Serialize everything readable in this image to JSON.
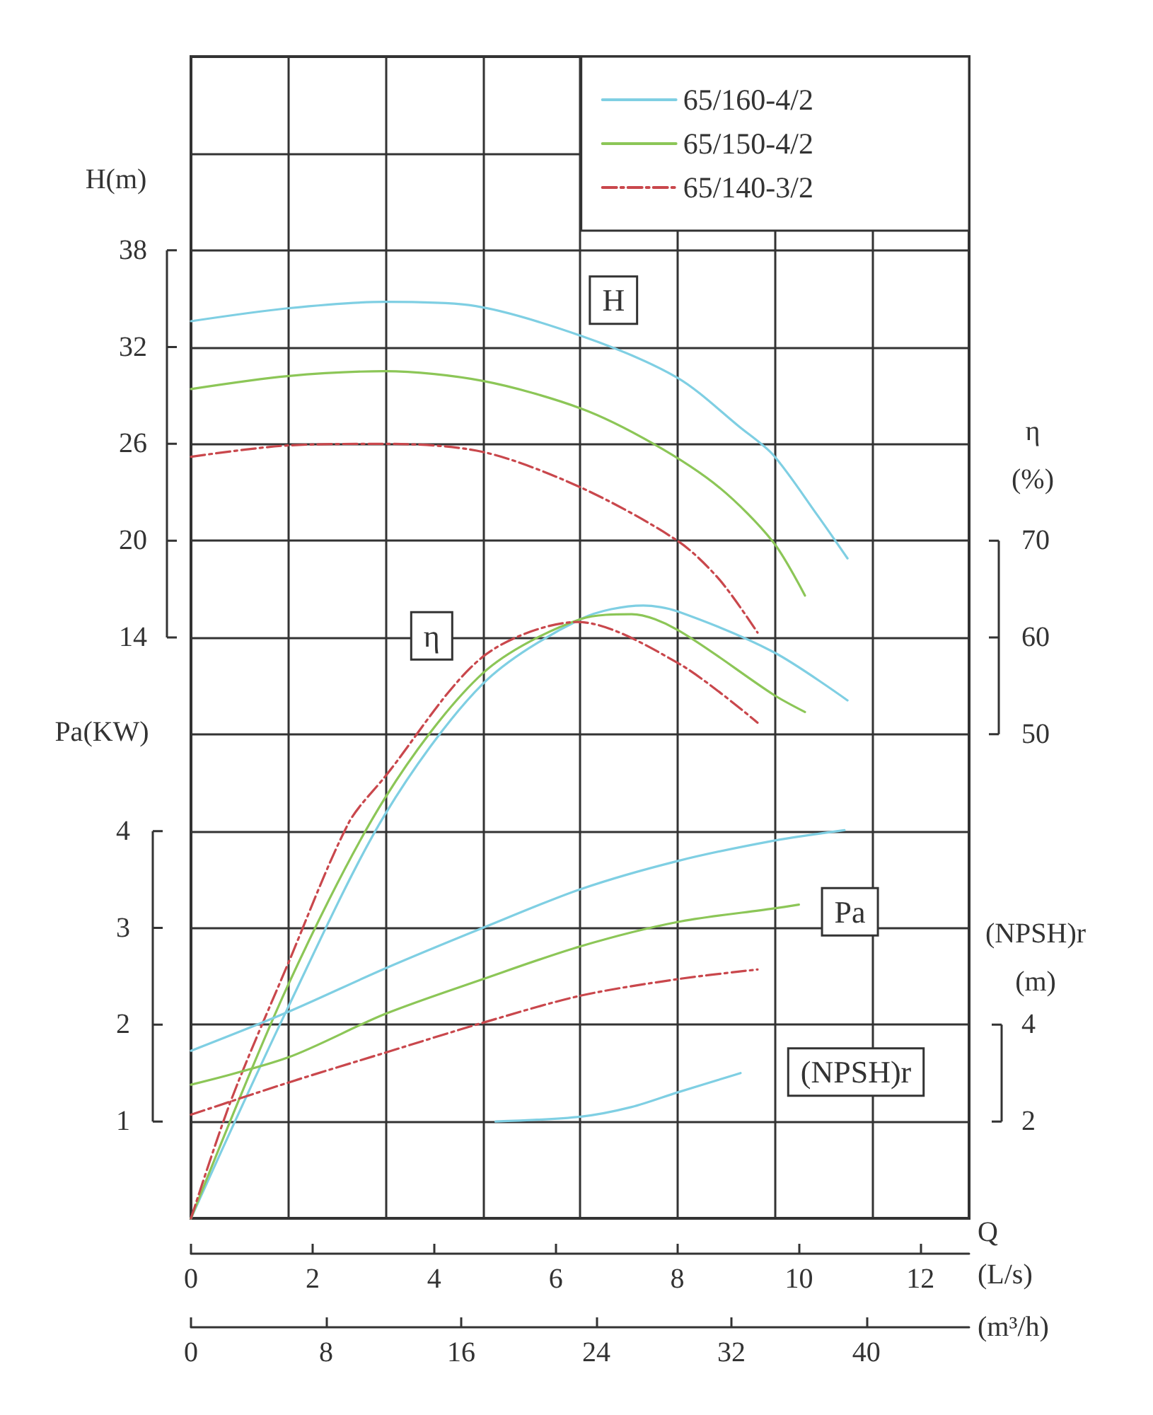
{
  "chart_data": [
    {
      "type": "line",
      "xlabel": "Q (L/s)",
      "x2label": "(m³/h)",
      "ylabel": "H(m)",
      "y2label": "η (%)",
      "y3label": "Pa(KW)",
      "xlim": [
        0,
        12.8
      ],
      "xticks": [
        0,
        2,
        4,
        6,
        8,
        10,
        12
      ],
      "x2lim": [
        0,
        46.08
      ],
      "x2ticks": [
        0,
        8,
        16,
        24,
        32,
        40
      ],
      "ylim": [
        -22,
        50
      ],
      "yticks": [
        14,
        20,
        26,
        32,
        38
      ],
      "y2lim": [
        0,
        120
      ],
      "y2ticks": [
        50,
        60,
        70
      ],
      "y3lim": [
        0,
        12
      ],
      "y3ticks": [
        1,
        2,
        3,
        4
      ],
      "grid": true,
      "legend": "top right",
      "marker": "none",
      "series": [
        {
          "name": "65/160-4/2",
          "color": "#7fcfe3",
          "axis": "y",
          "line_style": "solid",
          "x": [
            0,
            1.59,
            3.19,
            4.57,
            6.41,
            8.0,
            9.04,
            9.58,
            10.3,
            10.8
          ],
          "values": [
            33.6,
            34.4,
            34.8,
            34.6,
            32.7,
            30.1,
            27.0,
            25.3,
            21.6,
            18.9
          ]
        },
        {
          "name": "65/150-4/2",
          "color": "#8cc657",
          "axis": "y",
          "line_style": "solid",
          "x": [
            0,
            1.59,
            3.19,
            4.8,
            6.41,
            7.61,
            8.69,
            9.58,
            10.1
          ],
          "values": [
            29.4,
            30.2,
            30.5,
            29.9,
            28.2,
            26.0,
            23.3,
            19.9,
            16.6
          ]
        },
        {
          "name": "65/140-3/2",
          "color": "#c9474c",
          "axis": "y",
          "line_style": "dashed",
          "x": [
            0,
            1.59,
            3.19,
            4.8,
            6.41,
            8.0,
            8.69,
            9.32
          ],
          "values": [
            25.2,
            25.9,
            26.0,
            25.5,
            23.3,
            20.0,
            17.6,
            14.3
          ]
        },
        {
          "color": "#7fcfe3",
          "axis": "y2",
          "line_style": "solid",
          "x": [
            0,
            1.59,
            3.19,
            4.8,
            6.41,
            7.44,
            8.0,
            9.58,
            10.8
          ],
          "values": [
            0,
            21.7,
            41.7,
            55.2,
            61.9,
            63.3,
            62.7,
            58.5,
            53.5
          ]
        },
        {
          "color": "#8cc657",
          "axis": "y2",
          "line_style": "solid",
          "x": [
            0,
            1.59,
            3.19,
            4.8,
            6.41,
            7.25,
            8.0,
            9.58,
            10.1
          ],
          "values": [
            0,
            24.0,
            43.4,
            56.3,
            61.9,
            62.4,
            60.8,
            54.1,
            52.3
          ]
        },
        {
          "color": "#c9474c",
          "axis": "y2",
          "line_style": "dashed",
          "x": [
            0,
            0.66,
            1.59,
            2.59,
            3.19,
            4.8,
            6.36,
            8.0,
            9.32
          ],
          "values": [
            0,
            12.2,
            26.2,
            40.8,
            45.6,
            58.0,
            61.6,
            57.4,
            51.2
          ]
        },
        {
          "color": "#7fcfe3",
          "axis": "y3",
          "line_style": "solid",
          "x": [
            0,
            1.59,
            3.19,
            4.8,
            6.41,
            8.0,
            9.58,
            10.75
          ],
          "values": [
            1.73,
            2.13,
            2.58,
            3.0,
            3.4,
            3.69,
            3.9,
            4.01
          ]
        },
        {
          "color": "#8cc657",
          "axis": "y3",
          "line_style": "solid",
          "x": [
            0,
            1.59,
            3.19,
            4.8,
            6.41,
            8.0,
            9.58,
            10.0
          ],
          "values": [
            1.38,
            1.66,
            2.11,
            2.47,
            2.81,
            3.06,
            3.2,
            3.24
          ]
        },
        {
          "color": "#c9474c",
          "axis": "y3",
          "line_style": "dashed",
          "x": [
            0,
            1.59,
            3.19,
            4.8,
            6.41,
            8.0,
            9.32
          ],
          "values": [
            1.07,
            1.4,
            1.71,
            2.02,
            2.3,
            2.47,
            2.57
          ]
        }
      ],
      "annotations": [
        {
          "text": "H",
          "x": 6.95,
          "y": 34.9
        },
        {
          "text": "η",
          "x": 3.96,
          "y": 14.1
        },
        {
          "text": "Pa",
          "x": 10.84,
          "y": -3.0
        }
      ]
    },
    {
      "type": "line",
      "ylabel": "(NPSH)r (m)",
      "xlim": [
        0,
        12.8
      ],
      "ylim": [
        0,
        24
      ],
      "yticks": [
        2,
        4
      ],
      "tick_labels": "y",
      "marker": "none",
      "series": [
        {
          "color": "#7fcfe3",
          "line_style": "solid",
          "x": [
            5.01,
            6.41,
            7.25,
            8.0,
            9.04
          ],
          "values": [
            2.0,
            2.1,
            2.3,
            2.6,
            3.0
          ]
        }
      ],
      "annotations": [
        "(NPSH)r"
      ]
    }
  ]
}
